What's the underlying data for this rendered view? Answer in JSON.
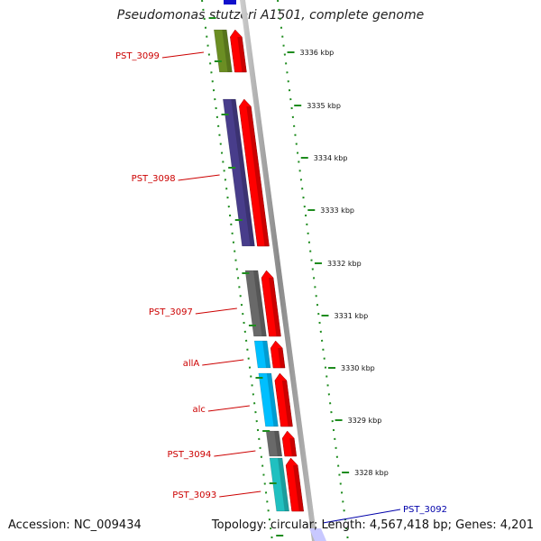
{
  "title": "Pseudomonas stutzeri A1501, complete genome",
  "footer": {
    "accession": "Accession: NC_009434",
    "summary": "Topology: circular; Length: 4,567,418 bp; Genes: 4,201"
  },
  "colors": {
    "strand": "#ff0000",
    "outer_ticks": "#1e8c1e",
    "backbone": "#999999",
    "gene_label": "#cc0000",
    "highlight_label": "#0000aa"
  },
  "tick_labels": [
    "3336 kbp",
    "3335 kbp",
    "3334 kbp",
    "3333 kbp",
    "3332 kbp",
    "3331 kbp",
    "3330 kbp",
    "3329 kbp",
    "3328 kbp"
  ],
  "genes": [
    {
      "label": "PST_3099",
      "color": "#6b8e23"
    },
    {
      "label": "PST_3098",
      "color": "#483d8b"
    },
    {
      "label": "PST_3097",
      "color": "#696969"
    },
    {
      "label": "allA",
      "color": "#00bfff"
    },
    {
      "label": "alc",
      "color": "#00bfff"
    },
    {
      "label": "PST_3094",
      "color": "#696969"
    },
    {
      "label": "PST_3093",
      "color": "#20c0c0"
    }
  ],
  "highlight_gene": {
    "label": "PST_3092"
  }
}
